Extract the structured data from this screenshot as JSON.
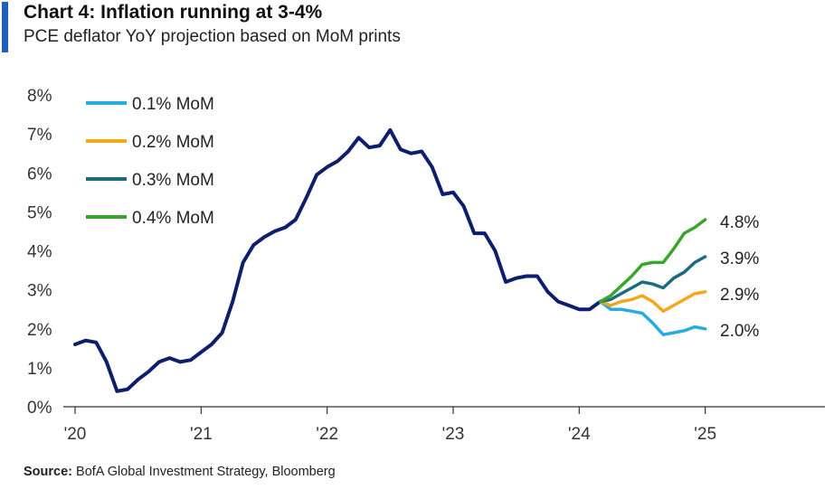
{
  "header": {
    "title": "Chart 4: Inflation running at 3-4%",
    "subtitle": "PCE deflator YoY projection based on MoM prints"
  },
  "footer": {
    "source_label": "Source:",
    "source_text": "BofA Global Investment Strategy, Bloomberg"
  },
  "chart_data": {
    "type": "line",
    "title": "Chart 4: Inflation running at 3-4%",
    "subtitle": "PCE deflator YoY projection based on MoM prints",
    "xlabel": "",
    "ylabel": "",
    "xlim": [
      2020.0,
      2025.95
    ],
    "ylim": [
      0,
      8
    ],
    "x_ticks": [
      {
        "value": 2020,
        "label": "'20"
      },
      {
        "value": 2021,
        "label": "'21"
      },
      {
        "value": 2022,
        "label": "'22"
      },
      {
        "value": 2023,
        "label": "'23"
      },
      {
        "value": 2024,
        "label": "'24"
      },
      {
        "value": 2025,
        "label": "'25"
      }
    ],
    "y_ticks": [
      {
        "value": 0,
        "label": "0%"
      },
      {
        "value": 1,
        "label": "1%"
      },
      {
        "value": 2,
        "label": "2%"
      },
      {
        "value": 3,
        "label": "3%"
      },
      {
        "value": 4,
        "label": "4%"
      },
      {
        "value": 5,
        "label": "5%"
      },
      {
        "value": 6,
        "label": "6%"
      },
      {
        "value": 7,
        "label": "7%"
      },
      {
        "value": 8,
        "label": "8%"
      }
    ],
    "grid": false,
    "legend_position": "top-left",
    "history": {
      "color": "#0d1f6b",
      "x": [
        2020.0,
        2020.083,
        2020.167,
        2020.25,
        2020.333,
        2020.417,
        2020.5,
        2020.583,
        2020.667,
        2020.75,
        2020.833,
        2020.917,
        2021.0,
        2021.083,
        2021.167,
        2021.25,
        2021.333,
        2021.417,
        2021.5,
        2021.583,
        2021.667,
        2021.75,
        2021.833,
        2021.917,
        2022.0,
        2022.083,
        2022.167,
        2022.25,
        2022.333,
        2022.417,
        2022.5,
        2022.583,
        2022.667,
        2022.75,
        2022.833,
        2022.917,
        2023.0,
        2023.083,
        2023.167,
        2023.25,
        2023.333,
        2023.417,
        2023.5,
        2023.583,
        2023.667,
        2023.75,
        2023.833,
        2023.917,
        2024.0,
        2024.083,
        2024.167
      ],
      "y": [
        1.6,
        1.7,
        1.65,
        1.15,
        0.4,
        0.45,
        0.7,
        0.9,
        1.15,
        1.25,
        1.15,
        1.2,
        1.4,
        1.6,
        1.9,
        2.7,
        3.7,
        4.15,
        4.35,
        4.5,
        4.6,
        4.8,
        5.35,
        5.95,
        6.15,
        6.3,
        6.55,
        6.9,
        6.65,
        6.7,
        7.1,
        6.6,
        6.5,
        6.55,
        6.15,
        5.45,
        5.5,
        5.15,
        4.45,
        4.45,
        4.0,
        3.2,
        3.3,
        3.35,
        3.35,
        2.95,
        2.7,
        2.6,
        2.5,
        2.5,
        2.7
      ]
    },
    "series": [
      {
        "name": "0.1% MoM",
        "color": "#29aae1",
        "end_label": "2.0%",
        "x": [
          2024.167,
          2024.25,
          2024.333,
          2024.417,
          2024.5,
          2024.583,
          2024.667,
          2024.75,
          2024.833,
          2024.917,
          2025.0
        ],
        "y": [
          2.7,
          2.5,
          2.5,
          2.45,
          2.4,
          2.15,
          1.85,
          1.9,
          1.95,
          2.05,
          2.0
        ]
      },
      {
        "name": "0.2% MoM",
        "color": "#f2a81d",
        "end_label": "2.9%",
        "x": [
          2024.167,
          2024.25,
          2024.333,
          2024.417,
          2024.5,
          2024.583,
          2024.667,
          2024.75,
          2024.833,
          2024.917,
          2025.0
        ],
        "y": [
          2.7,
          2.6,
          2.7,
          2.75,
          2.85,
          2.7,
          2.45,
          2.6,
          2.75,
          2.9,
          2.95
        ]
      },
      {
        "name": "0.3% MoM",
        "color": "#1d6b80",
        "end_label": "3.9%",
        "x": [
          2024.167,
          2024.25,
          2024.333,
          2024.417,
          2024.5,
          2024.583,
          2024.667,
          2024.75,
          2024.833,
          2024.917,
          2025.0
        ],
        "y": [
          2.7,
          2.75,
          2.9,
          3.05,
          3.2,
          3.15,
          3.05,
          3.3,
          3.45,
          3.7,
          3.85
        ]
      },
      {
        "name": "0.4% MoM",
        "color": "#3aa52b",
        "end_label": "4.8%",
        "x": [
          2024.167,
          2024.25,
          2024.333,
          2024.417,
          2024.5,
          2024.583,
          2024.667,
          2024.75,
          2024.833,
          2024.917,
          2025.0
        ],
        "y": [
          2.7,
          2.85,
          3.1,
          3.35,
          3.65,
          3.7,
          3.7,
          4.05,
          4.45,
          4.6,
          4.8
        ]
      }
    ]
  }
}
